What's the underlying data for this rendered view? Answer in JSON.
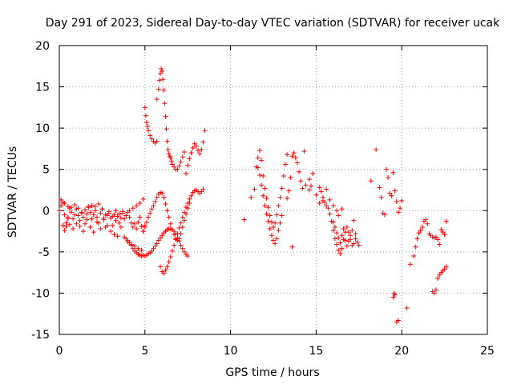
{
  "chart_data": {
    "type": "scatter",
    "title": "Day 291 of 2023, Sidereal Day-to-day VTEC variation (SDTVAR) for receiver ucak",
    "xlabel": "GPS time / hours",
    "ylabel": "SDTVAR / TECUs",
    "xlim": [
      0,
      25
    ],
    "ylim": [
      -15,
      20
    ],
    "xticks": [
      "0",
      "5",
      "10",
      "15",
      "20",
      "25"
    ],
    "yticks": [
      "-15",
      "-10",
      "-5",
      "0",
      "5",
      "10",
      "15",
      "20"
    ],
    "grid": true,
    "marker": "plus",
    "color": "#ff0000",
    "series": [
      {
        "name": "SDTVAR",
        "x": [
          0.0,
          0.1,
          0.2,
          0.3,
          0.4,
          0.5,
          0.6,
          0.7,
          0.8,
          0.9,
          1.0,
          1.1,
          1.2,
          1.3,
          1.4,
          1.5,
          1.6,
          1.7,
          1.8,
          1.9,
          2.0,
          2.1,
          2.2,
          2.3,
          2.4,
          2.5,
          2.6,
          2.7,
          2.8,
          2.9,
          3.0,
          3.1,
          3.2,
          3.3,
          3.4,
          3.5,
          3.6,
          3.7,
          3.8,
          3.9,
          4.0,
          4.1,
          4.2,
          4.3,
          4.4,
          4.5,
          4.6,
          4.7,
          4.8,
          4.9,
          5.0,
          0.2,
          0.3,
          0.4,
          0.5,
          0.6,
          0.8,
          1.0,
          1.2,
          1.4,
          1.6,
          1.8,
          2.0,
          2.2,
          2.4,
          2.6,
          2.8,
          3.0,
          3.2,
          3.4,
          3.6,
          3.8,
          4.0,
          4.2,
          4.4,
          4.6,
          4.8,
          0.1,
          0.3,
          0.5,
          0.7,
          0.9,
          1.1,
          1.3,
          1.5,
          1.7,
          1.9,
          2.1,
          2.3,
          2.5,
          2.7,
          2.9,
          3.1,
          3.3,
          3.5,
          3.7,
          3.9,
          4.1,
          4.3,
          4.5,
          4.7,
          4.9,
          3.9,
          4.0,
          4.1,
          4.2,
          4.3,
          4.4,
          4.5,
          4.6,
          4.7,
          4.8,
          4.9,
          5.0,
          5.1,
          5.2,
          5.3,
          5.4,
          5.5,
          5.6,
          5.7,
          5.8,
          5.9,
          6.0,
          6.1,
          6.2,
          6.3,
          6.4,
          6.5,
          6.6,
          6.7,
          6.8,
          6.9,
          7.0,
          7.1,
          7.2,
          7.3,
          7.4,
          7.5,
          4.9,
          5.0,
          5.1,
          5.2,
          5.3,
          5.4,
          5.5,
          5.6,
          5.7,
          5.8,
          5.9,
          6.0,
          6.1,
          6.2,
          6.3,
          6.4,
          6.5,
          6.6,
          6.7,
          6.8,
          6.9,
          7.0,
          7.1,
          7.2,
          7.3,
          7.4,
          7.5,
          7.6,
          5.0,
          5.05,
          5.1,
          5.15,
          5.2,
          5.3,
          5.4,
          5.5,
          5.6,
          5.7,
          5.7,
          5.8,
          5.85,
          5.9,
          5.95,
          6.0,
          6.05,
          6.1,
          6.15,
          6.2,
          6.25,
          6.3,
          6.35,
          6.4,
          6.45,
          6.5,
          6.55,
          6.6,
          6.7,
          6.8,
          6.9,
          7.0,
          7.1,
          7.2,
          7.3,
          5.9,
          6.0,
          6.1,
          6.2,
          6.3,
          6.4,
          6.5,
          6.6,
          6.7,
          6.8,
          6.9,
          7.0,
          7.1,
          7.2,
          7.3,
          7.4,
          7.5,
          7.6,
          7.7,
          7.8,
          7.9,
          8.0,
          8.1,
          8.2,
          8.3,
          8.4,
          7.4,
          7.5,
          7.6,
          7.7,
          7.8,
          7.9,
          8.0,
          8.1,
          8.2,
          8.3,
          8.4,
          8.5,
          10.8,
          11.2,
          11.4,
          11.5,
          11.6,
          11.7,
          11.8,
          11.9,
          12.0,
          12.1,
          12.2,
          12.3,
          12.4,
          12.5,
          12.6,
          12.7,
          12.8,
          12.9,
          13.0,
          13.1,
          13.2,
          13.3,
          11.6,
          11.7,
          11.8,
          11.9,
          12.0,
          12.1,
          12.2,
          12.3,
          12.4,
          12.5,
          12.6,
          12.7,
          12.8,
          12.9,
          13.0,
          13.3,
          13.4,
          13.5,
          13.6,
          13.7,
          13.8,
          13.9,
          14.0,
          14.1,
          14.2,
          14.4,
          14.6,
          14.8,
          15.0,
          15.2,
          15.3,
          15.4,
          15.5,
          15.6,
          15.7,
          15.8,
          15.9,
          16.0,
          16.1,
          16.2,
          16.3,
          16.4,
          16.5,
          16.6,
          16.7,
          16.8,
          16.9,
          17.0,
          17.1,
          17.2,
          17.3,
          13.6,
          14.3,
          14.6,
          14.7,
          15.2,
          15.4,
          15.6,
          15.8,
          16.0,
          16.2,
          16.3,
          16.5,
          16.0,
          16.1,
          16.2,
          16.3,
          16.4,
          16.5,
          16.6,
          16.7,
          16.8,
          16.9,
          17.0,
          17.1,
          17.2,
          17.3,
          17.4,
          17.5,
          18.2,
          18.5,
          18.7,
          18.8,
          18.9,
          19.0,
          19.1,
          19.2,
          19.3,
          19.4,
          19.5,
          19.6,
          19.7,
          19.8,
          19.9,
          20.0,
          19.5,
          19.55,
          19.6,
          19.7,
          19.8,
          20.3,
          20.5,
          20.7,
          20.8,
          20.9,
          21.0,
          21.1,
          21.2,
          21.3,
          21.4,
          21.5,
          21.6,
          21.7,
          21.8,
          21.9,
          22.0,
          22.1,
          22.2,
          22.3,
          22.4,
          22.5,
          22.6,
          21.8,
          21.9,
          22.0,
          22.1,
          22.2,
          22.3,
          22.4,
          22.5,
          22.6
        ],
        "y": [
          0.0,
          0.6,
          1.0,
          -0.5,
          -1.5,
          -0.8,
          0.3,
          -0.2,
          -1.0,
          -0.5,
          0.2,
          -0.6,
          -1.2,
          -0.3,
          -0.8,
          -1.6,
          -0.4,
          0.4,
          -0.2,
          -1.0,
          -0.5,
          0.5,
          -0.8,
          -1.5,
          -0.3,
          0.2,
          -1.1,
          -2.0,
          -0.6,
          -0.1,
          -0.9,
          -1.8,
          -0.5,
          -1.2,
          -0.7,
          -1.5,
          -0.9,
          -0.3,
          -1.0,
          -0.6,
          -0.2,
          -0.8,
          -1.5,
          -2.0,
          -1.6,
          -2.2,
          -1.4,
          -0.8,
          -1.9,
          -2.5,
          -1.8,
          -1.8,
          -2.4,
          -1.9,
          -1.0,
          -1.7,
          -2.2,
          -1.6,
          -1.9,
          -2.5,
          -1.1,
          -2.0,
          -2.6,
          -1.4,
          -2.2,
          -0.9,
          -1.8,
          -2.5,
          -2.9,
          -3.1,
          -2.0,
          -3.2,
          -3.8,
          -4.1,
          -4.3,
          -4.6,
          -4.8,
          1.3,
          0.9,
          0.5,
          0.4,
          0.7,
          0.3,
          -0.2,
          0.1,
          0.5,
          0.6,
          0.0,
          0.8,
          0.2,
          -0.5,
          -0.3,
          -0.7,
          0.0,
          -0.4,
          -0.1,
          -0.6,
          0.0,
          0.3,
          0.6,
          0.9,
          1.4,
          -3.4,
          -3.6,
          -3.9,
          -4.2,
          -4.6,
          -4.9,
          -5.1,
          -5.3,
          -5.4,
          -5.5,
          -5.4,
          -5.5,
          -5.4,
          -5.2,
          -5.1,
          -4.9,
          -4.6,
          -4.3,
          -4.0,
          -3.6,
          -3.3,
          -3.0,
          -2.7,
          -2.5,
          -2.3,
          -2.2,
          -2.2,
          -2.3,
          -2.5,
          -2.8,
          -3.3,
          -3.7,
          -4.2,
          -4.6,
          -5.0,
          -5.3,
          -5.5,
          -2.5,
          -2.0,
          -1.4,
          -0.8,
          -0.3,
          0.2,
          0.6,
          1.1,
          1.6,
          2.0,
          2.2,
          2.1,
          1.6,
          0.8,
          0.0,
          -0.8,
          -1.6,
          -2.3,
          -2.9,
          -3.4,
          -3.6,
          -3.4,
          -2.8,
          -2.0,
          -1.2,
          -0.4,
          0.3,
          0.9,
          12.5,
          11.5,
          10.7,
          10.2,
          9.7,
          9.1,
          8.7,
          8.4,
          8.2,
          8.4,
          13.5,
          14.7,
          15.8,
          16.6,
          17.2,
          16.9,
          15.9,
          14.6,
          13.0,
          11.4,
          9.9,
          8.4,
          7.4,
          6.9,
          6.6,
          6.4,
          6.0,
          5.6,
          5.3,
          5.0,
          5.0,
          5.4,
          5.9,
          6.5,
          7.1,
          -6.8,
          -7.4,
          -7.6,
          -7.2,
          -6.8,
          -6.2,
          -5.6,
          -4.9,
          -4.2,
          -3.5,
          -2.8,
          -2.1,
          -1.5,
          -0.8,
          -0.2,
          0.4,
          0.9,
          1.4,
          1.8,
          2.2,
          2.4,
          2.5,
          2.3,
          2.1,
          2.3,
          2.6,
          4.5,
          5.5,
          6.3,
          7.0,
          7.6,
          8.1,
          7.8,
          7.3,
          6.9,
          7.4,
          8.3,
          9.7,
          -1.1,
          1.6,
          2.6,
          5.3,
          6.4,
          7.3,
          6.1,
          4.2,
          2.7,
          1.5,
          0.4,
          -0.6,
          -1.4,
          -2.0,
          -1.5,
          -0.5,
          0.6,
          1.6,
          2.7,
          4.2,
          5.6,
          6.8,
          5.2,
          4.3,
          3.1,
          1.8,
          0.6,
          -0.4,
          -1.3,
          -2.2,
          -3.0,
          -3.6,
          -4.0,
          -3.4,
          -2.4,
          -1.5,
          -0.6,
          1.5,
          2.4,
          4.0,
          6.6,
          7.0,
          6.4,
          5.8,
          4.7,
          3.6,
          2.7,
          3.1,
          3.8,
          4.5,
          1.9,
          2.8,
          2.3,
          1.6,
          1.0,
          0.6,
          0.3,
          -0.4,
          -1.3,
          -2.4,
          -3.4,
          -4.1,
          -4.8,
          -5.2,
          -4.6,
          -3.5,
          -2.6,
          -2.0,
          -2.6,
          -3.5,
          -4.2,
          -4.0,
          -3.4,
          -4.4,
          7.2,
          2.5,
          3.0,
          0.9,
          1.2,
          2.6,
          1.3,
          0.6,
          0.0,
          -0.6,
          0.2,
          -1.4,
          -2.0,
          -2.7,
          -3.3,
          -3.9,
          -3.0,
          -2.2,
          -3.6,
          -4.3,
          -3.7,
          -3.0,
          -2.4,
          -1.2,
          -2.8,
          -3.8,
          -4.2,
          3.6,
          7.4,
          2.8,
          1.6,
          -0.3,
          -0.5,
          5.0,
          4.0,
          2.1,
          1.8,
          4.6,
          2.4,
          1.1,
          -0.2,
          0.3,
          1.2,
          -10.5,
          -10.0,
          -10.2,
          -13.5,
          -13.3,
          -11.8,
          -6.5,
          -5.5,
          -4.4,
          -3.4,
          -2.7,
          -2.4,
          -2.0,
          -1.3,
          -1.1,
          -1.6,
          -2.8,
          -3.0,
          -3.2,
          -3.3,
          -3.2,
          -3.5,
          -4.1,
          -2.3,
          -2.6,
          -2.9,
          -1.3,
          -9.8,
          -10.0,
          -9.6,
          -8.2,
          -7.8,
          -7.5,
          -7.3,
          -7.1,
          -6.8
        ]
      }
    ]
  }
}
